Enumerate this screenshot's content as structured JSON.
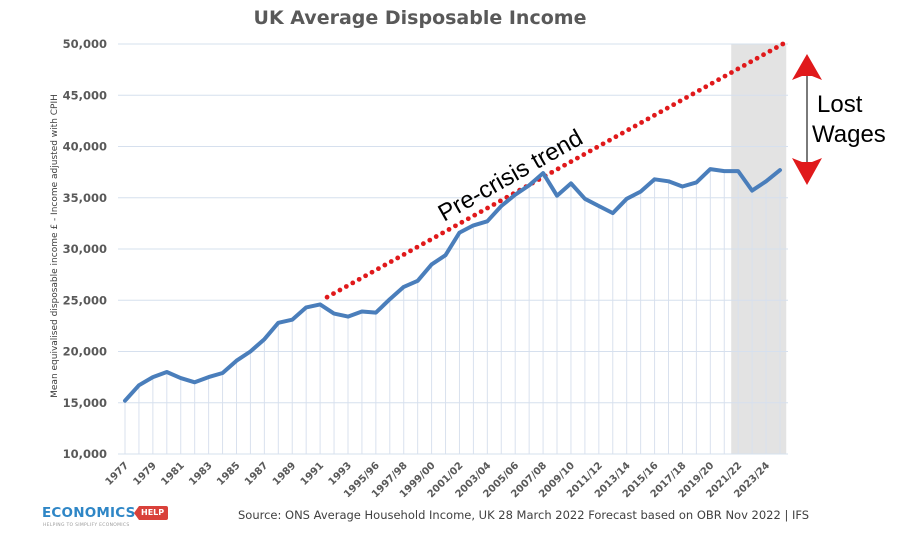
{
  "chart_data": {
    "type": "line",
    "title": "UK Average Disposable Income",
    "xlabel": "",
    "ylabel": "Mean equivalised disposable income £ - Income adjusted with CPIH",
    "ylim": [
      10000,
      50000
    ],
    "yticks": [
      10000,
      15000,
      20000,
      25000,
      30000,
      35000,
      40000,
      45000,
      50000
    ],
    "ytick_labels": [
      "10,000",
      "15,000",
      "20,000",
      "25,000",
      "30,000",
      "35,000",
      "40,000",
      "45,000",
      "50,000"
    ],
    "grid": true,
    "categories": [
      "1977",
      "1978",
      "1979",
      "1980",
      "1981",
      "1982",
      "1983",
      "1984",
      "1985",
      "1986",
      "1987",
      "1988",
      "1989",
      "1990",
      "1991",
      "1992",
      "1993",
      "1994/95",
      "1995/96",
      "1996/97",
      "1997/98",
      "1998/99",
      "1999/00",
      "2000/01",
      "2001/02",
      "2002/03",
      "2003/04",
      "2004/05",
      "2005/06",
      "2006/07",
      "2007/08",
      "2008/09",
      "2009/10",
      "2010/11",
      "2011/12",
      "2012/13",
      "2013/14",
      "2014/15",
      "2015/16",
      "2016/17",
      "2017/18",
      "2018/19",
      "2019/20",
      "2020/21",
      "2021/22",
      "2022/23",
      "2023/24",
      "2024/25"
    ],
    "xtick_labels": [
      "1977",
      "1979",
      "1981",
      "1983",
      "1985",
      "1987",
      "1989",
      "1991",
      "1993",
      "1995/96",
      "1997/98",
      "1999/00",
      "2001/02",
      "2003/04",
      "2005/06",
      "2007/08",
      "2009/10",
      "2011/12",
      "2013/14",
      "2015/16",
      "2017/18",
      "2019/20",
      "2021/22",
      "2023/24"
    ],
    "series": [
      {
        "name": "Mean equivalised disposable income",
        "color": "#4a7ebb",
        "values": [
          15200,
          16700,
          17500,
          18000,
          17400,
          17000,
          17500,
          17900,
          19100,
          20000,
          21200,
          22800,
          23100,
          24300,
          24600,
          23700,
          23400,
          23900,
          23800,
          25100,
          26300,
          26900,
          28500,
          29400,
          31600,
          32300,
          32700,
          34200,
          35300,
          36200,
          37400,
          35200,
          36400,
          34900,
          34200,
          33500,
          34900,
          35600,
          36800,
          36600,
          36100,
          36500,
          37800,
          37600,
          37600,
          35700,
          36600,
          37700
        ]
      },
      {
        "name": "Pre-crisis trend",
        "color": "#e0191b",
        "style": "dotted",
        "x_start": "1991",
        "x_end": "2024/25",
        "values_start_end": [
          25300,
          50000
        ]
      }
    ],
    "shaded_region": {
      "from": "2021/22",
      "to": "2024/25",
      "color": "#e3e3e3"
    },
    "annotations": {
      "trend_label": "Pre-crisis trend",
      "gap_label_line1": "Lost",
      "gap_label_line2": "Wages",
      "arrow_color": "#e0191b"
    }
  },
  "footer": {
    "source": "Source: ONS Average Household Income, UK 28 March 2022 Forecast based on OBR Nov 2022 | IFS",
    "logo_text": "ECONOMICS",
    "logo_tag": "HELP",
    "logo_tagline": "HELPING TO SIMPLIFY ECONOMICS"
  }
}
